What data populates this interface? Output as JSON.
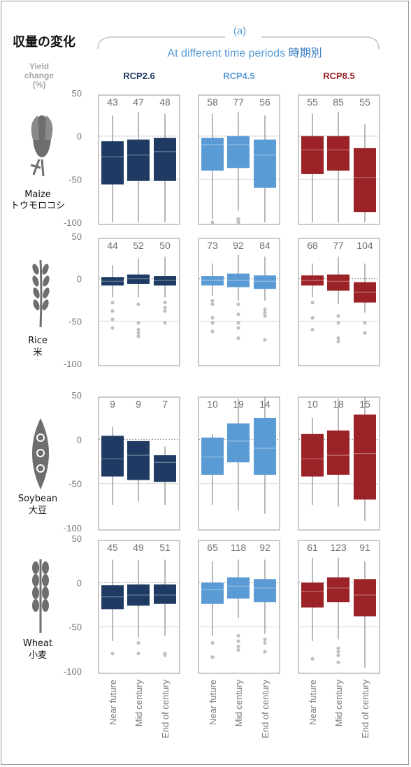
{
  "page": {
    "title_jp": "収量の変化",
    "panel_label": "(a)",
    "subtitle_en": "At different time periods",
    "subtitle_jp": "時期別",
    "yaxis_title_lines": [
      "Yield",
      "change",
      "(%)"
    ]
  },
  "colors": {
    "RCP2.6": "#1f3b63",
    "RCP4.5": "#5b9bd5",
    "RCP8.5": "#9b2226",
    "outlier": "#c0c0c0",
    "whisker": "#9a9a9a"
  },
  "icons": [
    "maize-icon",
    "rice-icon",
    "soybean-icon",
    "wheat-icon"
  ],
  "chart_data": {
    "type": "boxplot",
    "ylim": [
      -100,
      50
    ],
    "yticks": [
      50,
      0,
      -50,
      -100
    ],
    "scenarios": [
      "RCP2.6",
      "RCP4.5",
      "RCP8.5"
    ],
    "periods": [
      "Near future",
      "Mid century",
      "End of century"
    ],
    "crops": [
      {
        "name_en": "Maize",
        "name_jp": "トウモロコシ",
        "icon": "maize-icon",
        "groups": [
          {
            "scenario": "RCP2.6",
            "boxes": [
              {
                "n": "43",
                "whisker_high": 24,
                "q3": -6,
                "median": -24,
                "q1": -56,
                "whisker_low": -100,
                "outliers": []
              },
              {
                "n": "47",
                "whisker_high": 28,
                "q3": -4,
                "median": -22,
                "q1": -52,
                "whisker_low": -100,
                "outliers": []
              },
              {
                "n": "48",
                "whisker_high": 26,
                "q3": -2,
                "median": -18,
                "q1": -52,
                "whisker_low": -100,
                "outliers": []
              }
            ]
          },
          {
            "scenario": "RCP4.5",
            "boxes": [
              {
                "n": "58",
                "whisker_high": 26,
                "q3": -2,
                "median": -10,
                "q1": -40,
                "whisker_low": -96,
                "outliers": [
                  -100
                ]
              },
              {
                "n": "77",
                "whisker_high": 28,
                "q3": 0,
                "median": -10,
                "q1": -37,
                "whisker_low": -86,
                "outliers": [
                  -96,
                  -98,
                  -100
                ]
              },
              {
                "n": "56",
                "whisker_high": 24,
                "q3": -4,
                "median": -22,
                "q1": -60,
                "whisker_low": -100,
                "outliers": []
              }
            ]
          },
          {
            "scenario": "RCP8.5",
            "boxes": [
              {
                "n": "55",
                "whisker_high": 26,
                "q3": 0,
                "median": -16,
                "q1": -44,
                "whisker_low": -100,
                "outliers": []
              },
              {
                "n": "85",
                "whisker_high": 28,
                "q3": 0,
                "median": -16,
                "q1": -40,
                "whisker_low": -100,
                "outliers": []
              },
              {
                "n": "55",
                "whisker_high": 14,
                "q3": -14,
                "median": -48,
                "q1": -88,
                "whisker_low": -100,
                "outliers": []
              }
            ]
          }
        ]
      },
      {
        "name_en": "Rice",
        "name_jp": "米",
        "icon": "rice-icon",
        "groups": [
          {
            "scenario": "RCP2.6",
            "boxes": [
              {
                "n": "44",
                "whisker_high": 16,
                "q3": 2,
                "median": -3,
                "q1": -8,
                "whisker_low": -22,
                "outliers": [
                  -28,
                  -38,
                  -48,
                  -58
                ]
              },
              {
                "n": "52",
                "whisker_high": 24,
                "q3": 5,
                "median": 0,
                "q1": -6,
                "whisker_low": -22,
                "outliers": [
                  -30,
                  -52,
                  -60,
                  -64,
                  -68
                ]
              },
              {
                "n": "50",
                "whisker_high": 26,
                "q3": 3,
                "median": -2,
                "q1": -8,
                "whisker_low": -22,
                "outliers": [
                  -28,
                  -34,
                  -38,
                  -52
                ]
              }
            ]
          },
          {
            "scenario": "RCP4.5",
            "boxes": [
              {
                "n": "73",
                "whisker_high": 18,
                "q3": 3,
                "median": -2,
                "q1": -8,
                "whisker_low": -20,
                "outliers": [
                  -26,
                  -30,
                  -46,
                  -52,
                  -62
                ]
              },
              {
                "n": "92",
                "whisker_high": 28,
                "q3": 6,
                "median": -2,
                "q1": -10,
                "whisker_low": -26,
                "outliers": [
                  -30,
                  -42,
                  -52,
                  -58,
                  -70
                ]
              },
              {
                "n": "84",
                "whisker_high": 26,
                "q3": 4,
                "median": -3,
                "q1": -12,
                "whisker_low": -26,
                "outliers": [
                  -36,
                  -40,
                  -44,
                  -72
                ]
              }
            ]
          },
          {
            "scenario": "RCP8.5",
            "boxes": [
              {
                "n": "68",
                "whisker_high": 18,
                "q3": 4,
                "median": -2,
                "q1": -8,
                "whisker_low": -22,
                "outliers": [
                  -28,
                  -46,
                  -60
                ]
              },
              {
                "n": "77",
                "whisker_high": 26,
                "q3": 5,
                "median": -3,
                "q1": -14,
                "whisker_low": -30,
                "outliers": [
                  -44,
                  -52,
                  -70,
                  -74
                ]
              },
              {
                "n": "104",
                "whisker_high": 18,
                "q3": -4,
                "median": -16,
                "q1": -28,
                "whisker_low": -40,
                "outliers": [
                  -52,
                  -64
                ]
              }
            ]
          }
        ]
      },
      {
        "name_en": "Soybean",
        "name_jp": "大豆",
        "icon": "soybean-icon",
        "groups": [
          {
            "scenario": "RCP2.6",
            "boxes": [
              {
                "n": "9",
                "whisker_high": 14,
                "q3": 4,
                "median": -22,
                "q1": -42,
                "whisker_low": -74,
                "outliers": []
              },
              {
                "n": "9",
                "whisker_high": -2,
                "q3": -2,
                "median": -18,
                "q1": -46,
                "whisker_low": -70,
                "outliers": []
              },
              {
                "n": "7",
                "whisker_high": -8,
                "q3": -18,
                "median": -26,
                "q1": -48,
                "whisker_low": -74,
                "outliers": []
              }
            ]
          },
          {
            "scenario": "RCP4.5",
            "boxes": [
              {
                "n": "10",
                "whisker_high": 6,
                "q3": 2,
                "median": -20,
                "q1": -40,
                "whisker_low": -74,
                "outliers": []
              },
              {
                "n": "19",
                "whisker_high": 46,
                "q3": 18,
                "median": -2,
                "q1": -26,
                "whisker_low": -80,
                "outliers": []
              },
              {
                "n": "14",
                "whisker_high": 48,
                "q3": 24,
                "median": -10,
                "q1": -40,
                "whisker_low": -84,
                "outliers": []
              }
            ]
          },
          {
            "scenario": "RCP8.5",
            "boxes": [
              {
                "n": "10",
                "whisker_high": 24,
                "q3": 6,
                "median": -22,
                "q1": -42,
                "whisker_low": -74,
                "outliers": []
              },
              {
                "n": "18",
                "whisker_high": 46,
                "q3": 10,
                "median": -18,
                "q1": -40,
                "whisker_low": -76,
                "outliers": []
              },
              {
                "n": "15",
                "whisker_high": 48,
                "q3": 28,
                "median": -16,
                "q1": -68,
                "whisker_low": -92,
                "outliers": []
              }
            ]
          }
        ]
      },
      {
        "name_en": "Wheat",
        "name_jp": "小麦",
        "icon": "wheat-icon",
        "groups": [
          {
            "scenario": "RCP2.6",
            "boxes": [
              {
                "n": "45",
                "whisker_high": 26,
                "q3": -3,
                "median": -16,
                "q1": -30,
                "whisker_low": -66,
                "outliers": [
                  -80
                ]
              },
              {
                "n": "49",
                "whisker_high": 26,
                "q3": -2,
                "median": -14,
                "q1": -26,
                "whisker_low": -62,
                "outliers": [
                  -68,
                  -80
                ]
              },
              {
                "n": "51",
                "whisker_high": 26,
                "q3": -2,
                "median": -14,
                "q1": -24,
                "whisker_low": -60,
                "outliers": [
                  -80,
                  -82
                ]
              }
            ]
          },
          {
            "scenario": "RCP4.5",
            "boxes": [
              {
                "n": "65",
                "whisker_high": 24,
                "q3": 0,
                "median": -8,
                "q1": -24,
                "whisker_low": -60,
                "outliers": [
                  -68,
                  -84
                ]
              },
              {
                "n": "118",
                "whisker_high": 26,
                "q3": 6,
                "median": -4,
                "q1": -18,
                "whisker_low": -40,
                "outliers": [
                  -60,
                  -66,
                  -72,
                  -76
                ]
              },
              {
                "n": "92",
                "whisker_high": 26,
                "q3": 4,
                "median": -6,
                "q1": -22,
                "whisker_low": -58,
                "outliers": [
                  -64,
                  -68,
                  -78
                ]
              }
            ]
          },
          {
            "scenario": "RCP8.5",
            "boxes": [
              {
                "n": "61",
                "whisker_high": 28,
                "q3": 0,
                "median": -10,
                "q1": -28,
                "whisker_low": -66,
                "outliers": [
                  -86
                ]
              },
              {
                "n": "123",
                "whisker_high": 28,
                "q3": 6,
                "median": -6,
                "q1": -22,
                "whisker_low": -64,
                "outliers": [
                  -74,
                  -78,
                  -82,
                  -90
                ]
              },
              {
                "n": "91",
                "whisker_high": 24,
                "q3": 4,
                "median": -14,
                "q1": -38,
                "whisker_low": -96,
                "outliers": []
              }
            ]
          }
        ]
      }
    ]
  }
}
